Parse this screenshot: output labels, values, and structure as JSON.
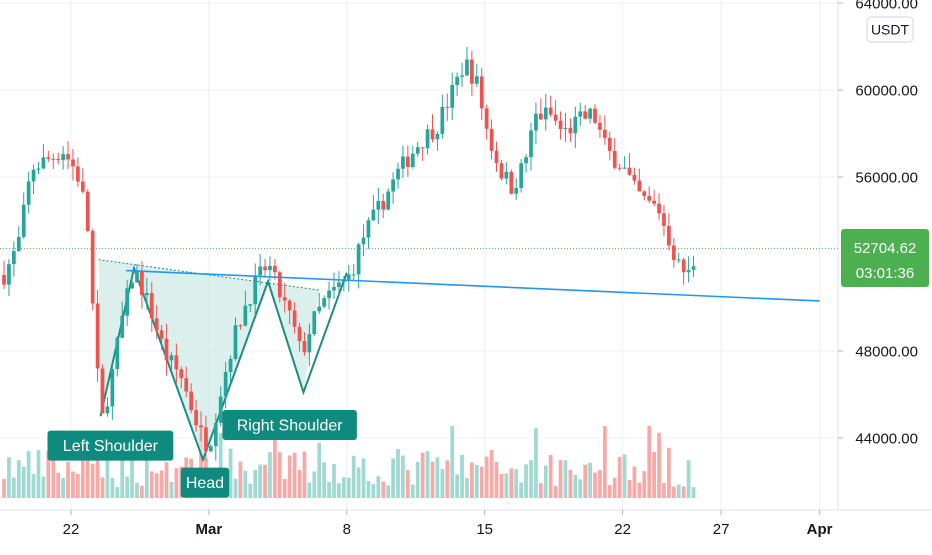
{
  "colors": {
    "up": "#26a69a",
    "down": "#ef5350",
    "volume_up": "#9fd9d2",
    "volume_down": "#f7a9a7",
    "pattern_line": "#1e8c80",
    "pattern_fill": "#cfeae7",
    "neckline": "#2196f3",
    "grid": "#eef0f3",
    "axis_text": "#131722",
    "price_label_bg": "#4caf50",
    "annotation_bg": "#0f8a7e",
    "annotation_text": "#ffffff"
  },
  "currency_badge": "USDT",
  "last_price": {
    "value": "52704.62",
    "countdown": "03:01:36"
  },
  "chart_data": {
    "type": "candlestick",
    "ylim": [
      41500,
      64500
    ],
    "y_ticks": [
      {
        "value": 44000,
        "label": "44000.00"
      },
      {
        "value": 48000,
        "label": "48000.00"
      },
      {
        "value": 56000,
        "label": "56000.00"
      },
      {
        "value": 60000,
        "label": "60000.00"
      },
      {
        "value": 64000,
        "label": "64000.00"
      }
    ],
    "x_ticks": [
      {
        "day": 22,
        "label": "22"
      },
      {
        "day": 29,
        "label": "Mar"
      },
      {
        "day": 36,
        "label": "8"
      },
      {
        "day": 43,
        "label": "15"
      },
      {
        "day": 50,
        "label": "22"
      },
      {
        "day": 55,
        "label": "27"
      },
      {
        "day": 60,
        "label": "Apr"
      }
    ],
    "x_range": [
      18.5,
      64.5
    ],
    "price_path": [
      [
        18.6,
        51500
      ],
      [
        19.3,
        52800
      ],
      [
        20.0,
        56400
      ],
      [
        20.8,
        56800
      ],
      [
        21.6,
        57200
      ],
      [
        22.3,
        56200
      ],
      [
        22.8,
        54300
      ],
      [
        23.0,
        51500
      ],
      [
        23.3,
        47200
      ],
      [
        23.6,
        44900
      ],
      [
        24.0,
        46500
      ],
      [
        24.6,
        49500
      ],
      [
        25.2,
        51800
      ],
      [
        26.0,
        50000
      ],
      [
        26.8,
        47800
      ],
      [
        27.6,
        46800
      ],
      [
        28.2,
        45200
      ],
      [
        28.6,
        44200
      ],
      [
        29.0,
        43600
      ],
      [
        29.5,
        45800
      ],
      [
        30.2,
        48400
      ],
      [
        30.8,
        50000
      ],
      [
        31.4,
        51200
      ],
      [
        32.0,
        52000
      ],
      [
        32.6,
        50600
      ],
      [
        33.2,
        49400
      ],
      [
        33.7,
        47800
      ],
      [
        34.2,
        49200
      ],
      [
        34.8,
        50200
      ],
      [
        35.4,
        50800
      ],
      [
        36.2,
        51500
      ],
      [
        36.8,
        53200
      ],
      [
        37.6,
        54500
      ],
      [
        38.6,
        56200
      ],
      [
        39.6,
        57500
      ],
      [
        40.6,
        58400
      ],
      [
        41.4,
        60000
      ],
      [
        42.0,
        61300
      ],
      [
        42.6,
        60300
      ],
      [
        43.2,
        57800
      ],
      [
        43.8,
        56300
      ],
      [
        44.4,
        55500
      ],
      [
        45.0,
        56600
      ],
      [
        45.6,
        58800
      ],
      [
        46.3,
        58900
      ],
      [
        47.0,
        58000
      ],
      [
        47.8,
        58600
      ],
      [
        48.5,
        58900
      ],
      [
        49.2,
        57200
      ],
      [
        50.0,
        56500
      ],
      [
        50.6,
        55400
      ],
      [
        51.2,
        54800
      ],
      [
        51.8,
        54600
      ],
      [
        52.4,
        53000
      ],
      [
        52.9,
        51800
      ],
      [
        53.4,
        51500
      ],
      [
        53.8,
        52700
      ]
    ],
    "volume_scale": 100,
    "pattern": {
      "points": [
        {
          "name": "left-shoulder-low",
          "day": 23.5,
          "price": 45000
        },
        {
          "name": "left-peak",
          "day": 25.2,
          "price": 51800
        },
        {
          "name": "head-low",
          "day": 28.7,
          "price": 43000
        },
        {
          "name": "right-peak",
          "day": 32.0,
          "price": 51200
        },
        {
          "name": "right-shoulder-low",
          "day": 33.8,
          "price": 46100
        },
        {
          "name": "breakout",
          "day": 36.0,
          "price": 51600
        }
      ],
      "upper_start": {
        "day": 23.4,
        "price": 52200
      },
      "upper_end": {
        "day": 34.6,
        "price": 50800
      }
    },
    "neckline": {
      "from": {
        "day": 24.8,
        "price": 51700
      },
      "to": {
        "day": 60.0,
        "price": 50300
      }
    },
    "annotations": [
      {
        "id": "left",
        "label": "Left Shoulder",
        "day": 24.0,
        "price": 43650
      },
      {
        "id": "head",
        "label": "Head",
        "day": 28.8,
        "price": 41950
      },
      {
        "id": "right",
        "label": "Right Shoulder",
        "day": 33.1,
        "price": 44600
      }
    ]
  }
}
